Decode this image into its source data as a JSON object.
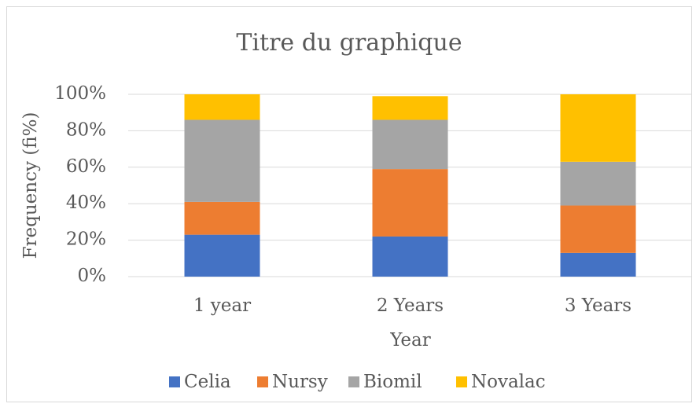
{
  "chart_data": {
    "type": "stacked_bar",
    "title": "Titre du graphique",
    "x_label": "Year",
    "y_label": "Frequency (fi%)",
    "categories": [
      "1 year",
      "2 Years",
      "3 Years"
    ],
    "series": [
      {
        "name": "Celia",
        "color": "#4472c4",
        "values": [
          23,
          22,
          13
        ]
      },
      {
        "name": "Nursy",
        "color": "#ed7d31",
        "values": [
          18,
          37,
          26
        ]
      },
      {
        "name": "Biomil",
        "color": "#a5a5a5",
        "values": [
          45,
          27,
          24
        ]
      },
      {
        "name": "Novalac",
        "color": "#ffc000",
        "values": [
          14,
          13,
          37
        ]
      }
    ],
    "ylim": [
      0,
      100
    ],
    "yticks": [
      {
        "value": 0,
        "label": "0%"
      },
      {
        "value": 20,
        "label": "20%"
      },
      {
        "value": 40,
        "label": "40%"
      },
      {
        "value": 60,
        "label": "60%"
      },
      {
        "value": 80,
        "label": "80%"
      },
      {
        "value": 100,
        "label": "100%"
      }
    ],
    "grid": true,
    "legend": "bottom"
  }
}
